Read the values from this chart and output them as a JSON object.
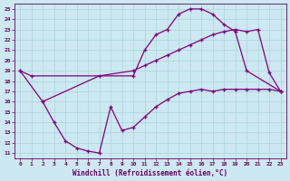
{
  "background_color": "#cce8f0",
  "line_color": "#800080",
  "grid_color": "#b0d8e0",
  "xlabel": "Windchill (Refroidissement éolien,°C)",
  "xlabel_color": "#660066",
  "tick_color": "#660066",
  "xlim": [
    -0.5,
    23.5
  ],
  "ylim": [
    10.5,
    25.5
  ],
  "xticks": [
    0,
    1,
    2,
    3,
    4,
    5,
    6,
    7,
    8,
    9,
    10,
    11,
    12,
    13,
    14,
    15,
    16,
    17,
    18,
    19,
    20,
    21,
    22,
    23
  ],
  "yticks": [
    11,
    12,
    13,
    14,
    15,
    16,
    17,
    18,
    19,
    20,
    21,
    22,
    23,
    24,
    25
  ],
  "curve1_x": [
    0,
    1,
    10,
    11,
    12,
    13,
    14,
    15,
    16,
    17,
    18,
    19,
    20,
    23
  ],
  "curve1_y": [
    19.0,
    18.5,
    18.5,
    21.0,
    22.5,
    23.0,
    24.5,
    25.0,
    25.0,
    24.5,
    23.5,
    22.8,
    19.0,
    17.0
  ],
  "curve2_x": [
    2,
    3,
    4,
    5,
    6,
    7,
    8,
    9,
    10,
    11,
    12,
    13,
    14,
    15,
    16,
    17,
    18,
    19,
    20,
    21,
    22,
    23
  ],
  "curve2_y": [
    16.0,
    14.0,
    12.2,
    11.5,
    11.2,
    11.0,
    15.5,
    13.2,
    13.5,
    14.5,
    15.5,
    16.2,
    16.8,
    17.0,
    17.2,
    17.0,
    17.2,
    17.2,
    17.2,
    17.2,
    17.2,
    17.0
  ],
  "curve3_x": [
    0,
    2,
    7,
    10,
    11,
    12,
    13,
    14,
    15,
    16,
    17,
    18,
    19,
    20,
    21,
    22,
    23
  ],
  "curve3_y": [
    19.0,
    16.0,
    18.5,
    19.0,
    19.5,
    20.0,
    20.5,
    21.0,
    21.5,
    22.0,
    22.5,
    22.8,
    23.0,
    22.8,
    23.0,
    18.8,
    17.0
  ]
}
